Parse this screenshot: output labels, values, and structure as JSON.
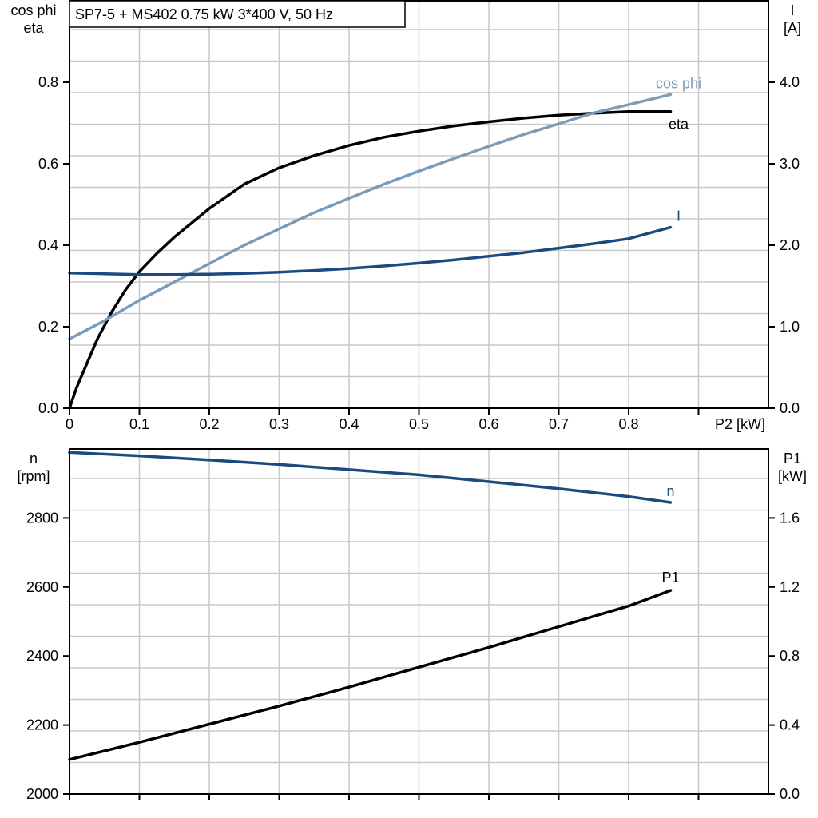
{
  "title": "SP7-5 + MS402   0.75 kW   3*400 V, 50 Hz",
  "chart_data": [
    {
      "type": "line",
      "panel": "top",
      "x_label": "P2 [kW]",
      "x_ticks": [
        "0",
        "0.1",
        "0.2",
        "0.3",
        "0.4",
        "0.5",
        "0.6",
        "0.7",
        "0.8"
      ],
      "xlim": [
        0,
        1.0
      ],
      "y_left_label": [
        "cos phi",
        "eta"
      ],
      "y_left_ticks": [
        "0.0",
        "0.2",
        "0.4",
        "0.6",
        "0.8"
      ],
      "y_left_lim": [
        0,
        1.0
      ],
      "y_right_label": [
        "I",
        "[A]"
      ],
      "y_right_ticks": [
        "0.0",
        "1.0",
        "2.0",
        "3.0",
        "4.0"
      ],
      "y_right_lim": [
        0,
        5.0
      ],
      "grid": true,
      "series": [
        {
          "name": "eta",
          "axis": "left",
          "color": "#000000",
          "x": [
            0,
            0.01,
            0.02,
            0.04,
            0.06,
            0.08,
            0.1,
            0.125,
            0.15,
            0.2,
            0.25,
            0.3,
            0.35,
            0.4,
            0.45,
            0.5,
            0.55,
            0.6,
            0.65,
            0.7,
            0.75,
            0.8,
            0.86
          ],
          "y": [
            0.0,
            0.05,
            0.09,
            0.17,
            0.235,
            0.29,
            0.335,
            0.38,
            0.42,
            0.49,
            0.55,
            0.59,
            0.62,
            0.645,
            0.665,
            0.68,
            0.693,
            0.703,
            0.712,
            0.719,
            0.724,
            0.728,
            0.728
          ]
        },
        {
          "name": "cos phi",
          "axis": "left",
          "color": "#7a9cba",
          "x": [
            0,
            0.05,
            0.1,
            0.15,
            0.2,
            0.25,
            0.3,
            0.35,
            0.4,
            0.45,
            0.5,
            0.55,
            0.6,
            0.65,
            0.7,
            0.75,
            0.8,
            0.86
          ],
          "y": [
            0.17,
            0.215,
            0.265,
            0.31,
            0.355,
            0.4,
            0.44,
            0.48,
            0.515,
            0.55,
            0.582,
            0.613,
            0.643,
            0.672,
            0.698,
            0.725,
            0.745,
            0.77
          ]
        },
        {
          "name": "I",
          "axis": "right",
          "color": "#1b4a7e",
          "x": [
            0,
            0.05,
            0.1,
            0.15,
            0.2,
            0.25,
            0.3,
            0.35,
            0.4,
            0.45,
            0.5,
            0.55,
            0.6,
            0.65,
            0.7,
            0.75,
            0.8,
            0.86
          ],
          "y": [
            1.66,
            1.65,
            1.64,
            1.64,
            1.645,
            1.655,
            1.67,
            1.69,
            1.715,
            1.745,
            1.78,
            1.82,
            1.865,
            1.91,
            1.965,
            2.02,
            2.08,
            2.22
          ]
        }
      ]
    },
    {
      "type": "line",
      "panel": "bottom",
      "xlim": [
        0,
        1.0
      ],
      "y_left_label": [
        "n",
        "[rpm]"
      ],
      "y_left_ticks": [
        "2000",
        "2200",
        "2400",
        "2600",
        "2800"
      ],
      "y_left_lim": [
        2000,
        3000
      ],
      "y_right_label": [
        "P1",
        "[kW]"
      ],
      "y_right_ticks": [
        "0.0",
        "0.4",
        "0.8",
        "1.2",
        "1.6"
      ],
      "y_right_lim": [
        0,
        2.0
      ],
      "grid": true,
      "series": [
        {
          "name": "n",
          "axis": "left",
          "color": "#1b4a7e",
          "x": [
            0,
            0.1,
            0.2,
            0.3,
            0.4,
            0.5,
            0.6,
            0.7,
            0.8,
            0.86
          ],
          "y": [
            2990,
            2980,
            2968,
            2955,
            2940,
            2925,
            2905,
            2885,
            2862,
            2845
          ]
        },
        {
          "name": "P1",
          "axis": "right",
          "color": "#000000",
          "x": [
            0,
            0.1,
            0.2,
            0.3,
            0.4,
            0.5,
            0.6,
            0.7,
            0.8,
            0.86
          ],
          "y": [
            0.2,
            0.3,
            0.405,
            0.51,
            0.62,
            0.735,
            0.85,
            0.97,
            1.09,
            1.18
          ]
        }
      ]
    }
  ]
}
